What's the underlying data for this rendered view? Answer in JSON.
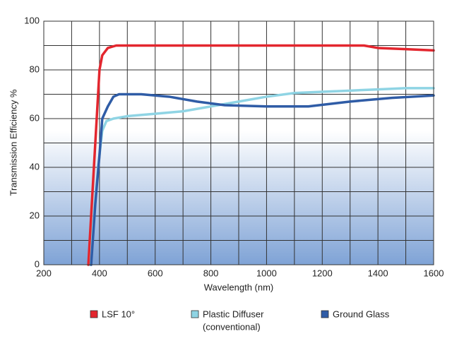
{
  "chart_data": {
    "type": "line",
    "x_label": "Wavelength (nm)",
    "y_label": "Transmission Efficiency %",
    "xlim": [
      200,
      1600
    ],
    "xticks": [
      200,
      400,
      600,
      800,
      1000,
      1200,
      1400,
      1600
    ],
    "xminor": [
      300,
      500,
      700,
      900,
      1100,
      1300,
      1500
    ],
    "ylim": [
      0,
      100
    ],
    "yticks": [
      0,
      20,
      40,
      60,
      80,
      100
    ],
    "yminor": [
      10,
      30,
      50,
      70,
      90
    ],
    "grid": true,
    "series": [
      {
        "name": "LSF 10°",
        "color": "#e3262e",
        "x": [
          360,
          375,
          390,
          400,
          410,
          430,
          460,
          600,
          1000,
          1350,
          1400,
          1500,
          1600
        ],
        "values": [
          0,
          30,
          60,
          80,
          86,
          89,
          90,
          90,
          90,
          90,
          89,
          88.5,
          88
        ]
      },
      {
        "name": "Plastic Diffuser",
        "legend_note": "(conventional)",
        "color": "#8fd4e4",
        "x": [
          365,
          380,
          395,
          410,
          425,
          450,
          500,
          600,
          700,
          800,
          900,
          1000,
          1100,
          1200,
          1300,
          1400,
          1500,
          1600
        ],
        "values": [
          0,
          20,
          40,
          55,
          59,
          60,
          61,
          62,
          63,
          65,
          67,
          69,
          70.5,
          71,
          71.5,
          72,
          72.5,
          72.5
        ]
      },
      {
        "name": "Ground Glass",
        "color": "#2f5ca6",
        "x": [
          370,
          385,
          400,
          410,
          430,
          450,
          470,
          550,
          650,
          750,
          850,
          1000,
          1150,
          1300,
          1450,
          1600
        ],
        "values": [
          0,
          25,
          45,
          60,
          65,
          69,
          70,
          70,
          69,
          67,
          65.5,
          65,
          65,
          67,
          68.5,
          69.5
        ]
      }
    ]
  }
}
